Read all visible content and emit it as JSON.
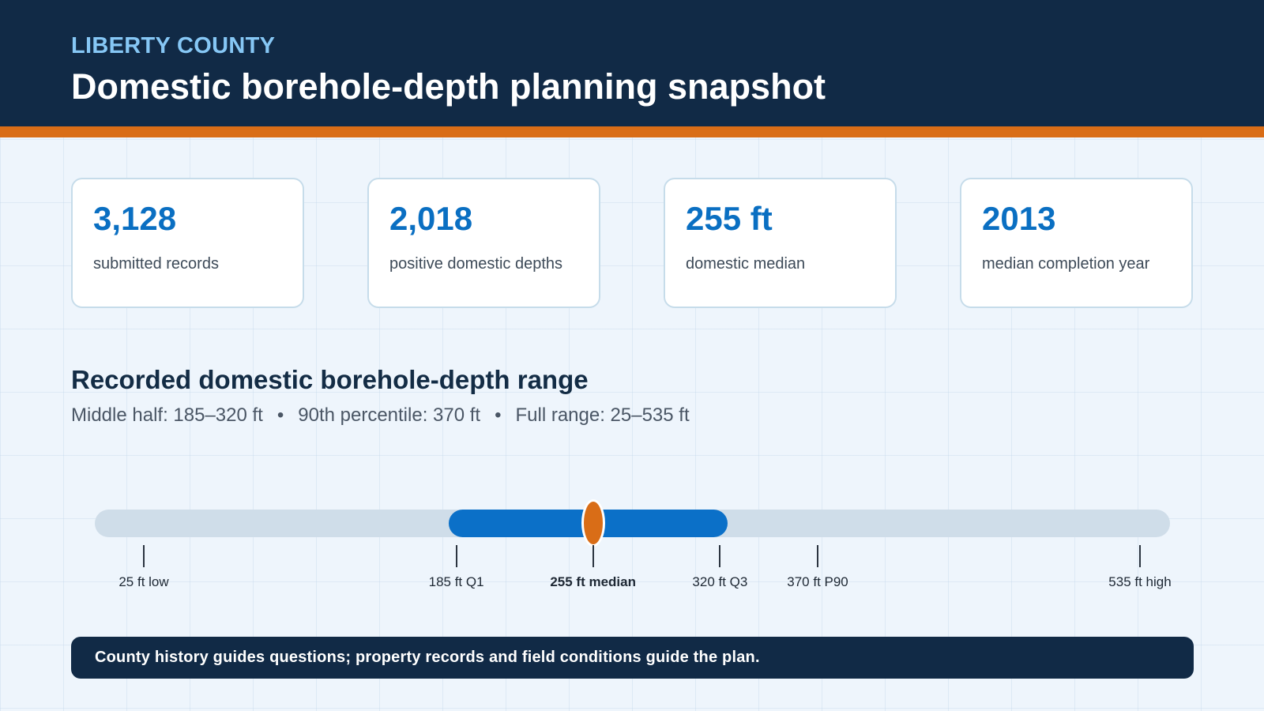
{
  "header": {
    "eyebrow": "LIBERTY COUNTY",
    "title": "Domestic borehole-depth planning snapshot"
  },
  "stats": [
    {
      "value": "3,128",
      "label": "submitted records"
    },
    {
      "value": "2,018",
      "label": "positive domestic depths"
    },
    {
      "value": "255 ft",
      "label": "domestic median"
    },
    {
      "value": "2013",
      "label": "median completion year"
    }
  ],
  "range": {
    "title": "Recorded domestic borehole-depth range",
    "summary": {
      "middle_half": "Middle half: 185–320 ft",
      "p90": "90th percentile: 370 ft",
      "full_range": "Full range: 25–535 ft",
      "separator": "•"
    }
  },
  "chart_data": {
    "type": "range",
    "units": "ft",
    "min": 25,
    "q1": 185,
    "median": 255,
    "q3": 320,
    "p90": 370,
    "max": 535,
    "markers": [
      {
        "value": 25,
        "label": "25 ft low"
      },
      {
        "value": 185,
        "label": "185 ft Q1"
      },
      {
        "value": 255,
        "label": "255 ft median",
        "emphasis": true
      },
      {
        "value": 320,
        "label": "320 ft Q3"
      },
      {
        "value": 370,
        "label": "370 ft P90"
      },
      {
        "value": 535,
        "label": "535 ft high"
      }
    ]
  },
  "footer": {
    "text": "County history guides questions; property records and field conditions guide the plan."
  },
  "colors": {
    "navy": "#112a46",
    "accent_orange": "#d96d17",
    "blue": "#0b70c8",
    "track": "#cfdde9"
  }
}
